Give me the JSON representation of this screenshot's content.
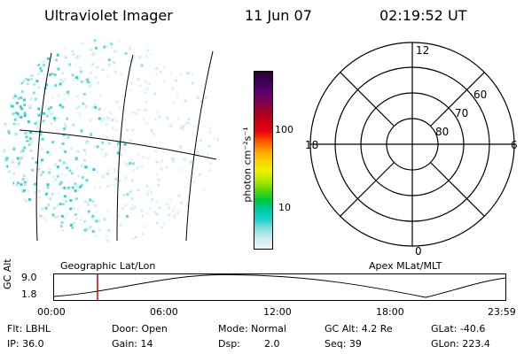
{
  "header": {
    "title": "Ultraviolet Imager",
    "date": "11 Jun 07",
    "time": "02:19:52 UT"
  },
  "colorbar": {
    "label": "photon cm⁻²s⁻¹",
    "ticks": [
      "100",
      "10"
    ],
    "colors": [
      "#2a0030",
      "#3a0050",
      "#5a0070",
      "#7a0058",
      "#a00028",
      "#c80010",
      "#e40010",
      "#f85000",
      "#ff9a00",
      "#ffcf00",
      "#f0f000",
      "#b8ea00",
      "#60d800",
      "#00c838",
      "#00c8a0",
      "#18d0d0",
      "#8ae0e0",
      "#cfeeee",
      "#eef6f6"
    ]
  },
  "polar": {
    "clock_labels": {
      "top": "12",
      "right": "6",
      "bottom": "0",
      "left": "18"
    },
    "lat_labels": [
      "60",
      "70",
      "80"
    ]
  },
  "timeline": {
    "y_axis_label": "GC Alt",
    "y_ticks": [
      "9.0",
      "1.8"
    ],
    "left_caption": "Geographic Lat/Lon",
    "right_caption": "Apex MLat/MLT",
    "x_ticks": [
      "00:00",
      "06:00",
      "12:00",
      "18:00",
      "23:59"
    ],
    "marker_hour": 2.33
  },
  "status": {
    "flt": "Flt: LBHL",
    "ip": "IP: 36.0",
    "door": "Door: Open",
    "gain": "Gain: 14",
    "mode": "Mode: Normal",
    "dsp_label": "Dsp:",
    "dsp_value": "2.0",
    "gc_alt": "GC Alt: 4.2 Re",
    "seq": "Seq: 39",
    "glat": "GLat: -40.6",
    "glon": "GLon: 223.4"
  }
}
